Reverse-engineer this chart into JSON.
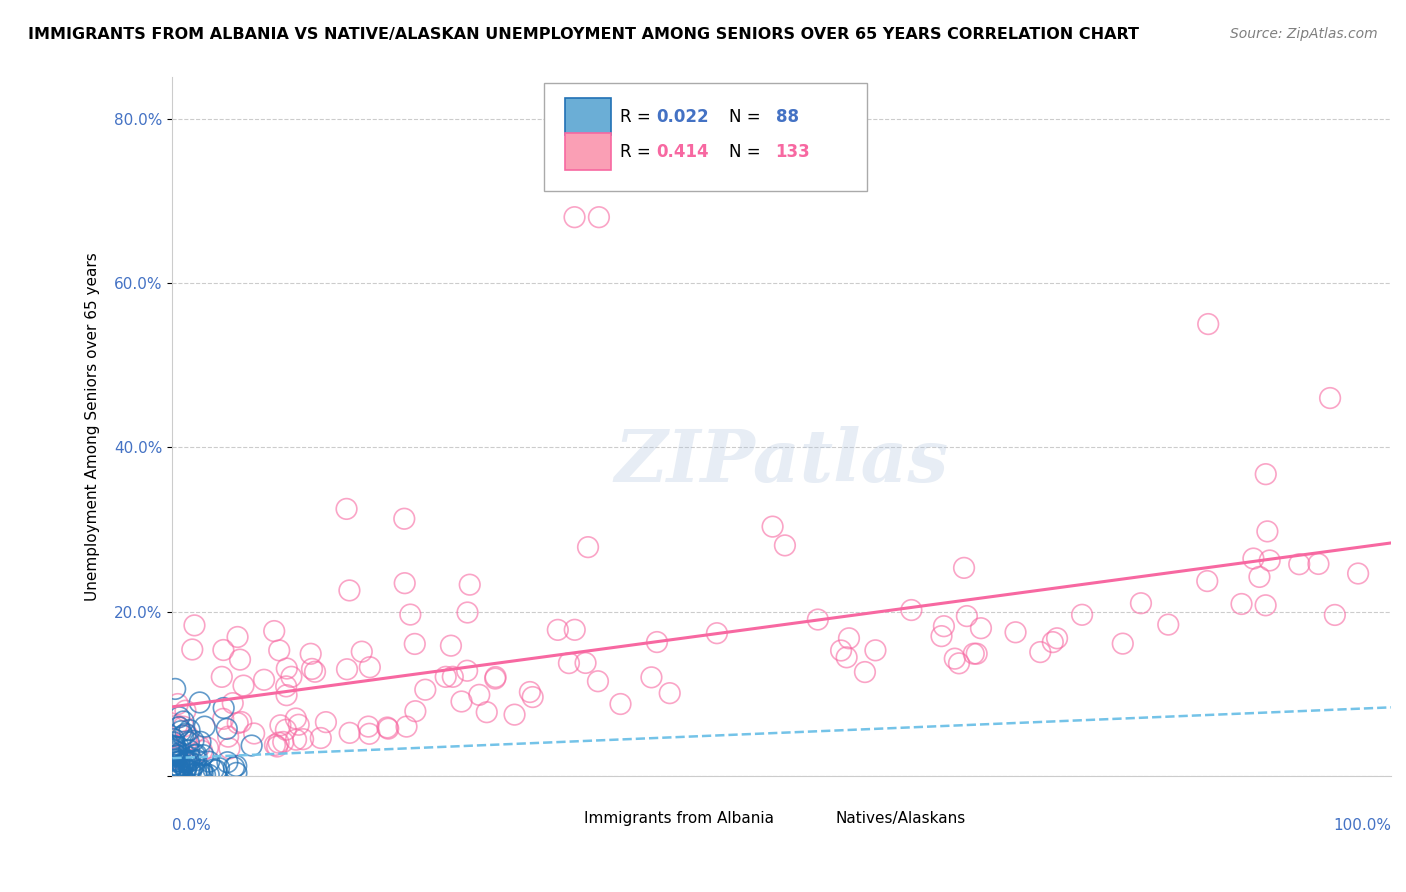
{
  "title": "IMMIGRANTS FROM ALBANIA VS NATIVE/ALASKAN UNEMPLOYMENT AMONG SENIORS OVER 65 YEARS CORRELATION CHART",
  "source": "Source: ZipAtlas.com",
  "ylabel": "Unemployment Among Seniors over 65 years",
  "xlim": [
    0.0,
    1.0
  ],
  "ylim": [
    0.0,
    0.85
  ],
  "color_blue": "#6baed6",
  "color_pink": "#fa9fb5",
  "color_blue_dark": "#2171b5",
  "color_pink_dark": "#f768a1",
  "color_trendline_blue": "#74c3e8",
  "color_trendline_pink": "#f768a1",
  "watermark": "ZIPatlas"
}
